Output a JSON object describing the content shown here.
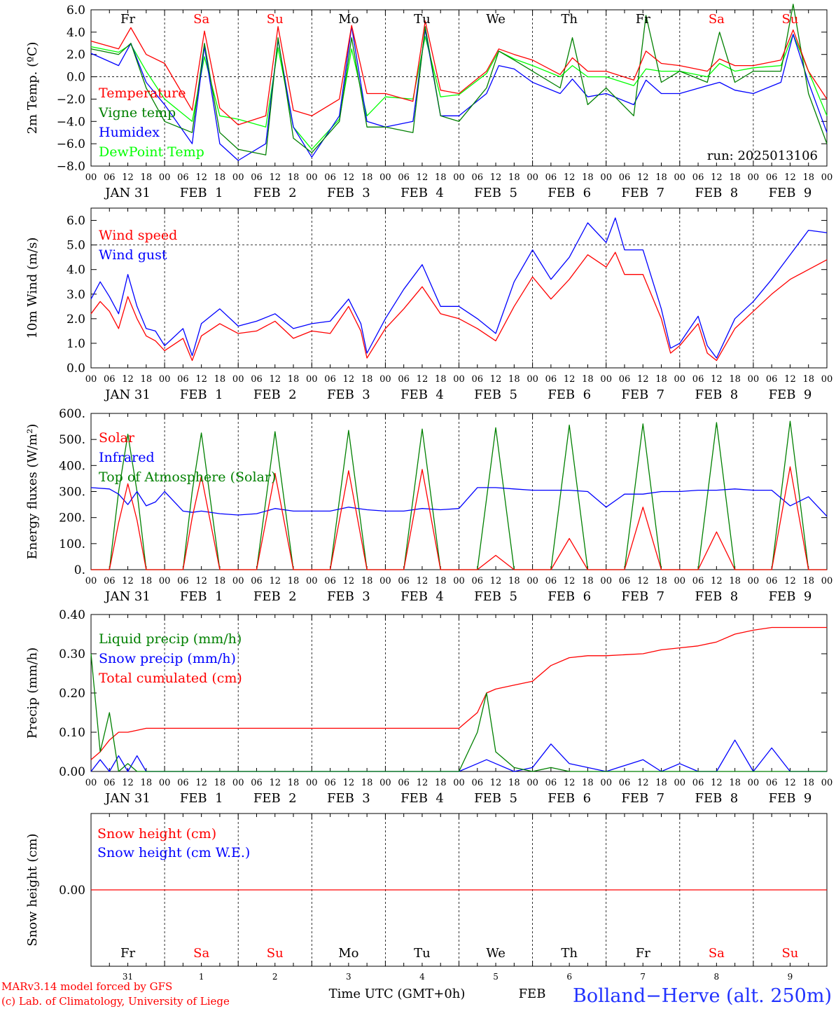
{
  "x_axis": {
    "hour_labels": [
      "00",
      "06",
      "12",
      "18"
    ],
    "day_labels": [
      "JAN 31",
      "FEB  1",
      "FEB  2",
      "FEB  3",
      "FEB  4",
      "FEB  5",
      "FEB  6",
      "FEB  7",
      "FEB  8",
      "FEB  9"
    ],
    "weekdays": [
      "Fr",
      "Sa",
      "Su",
      "Mo",
      "Tu",
      "We",
      "Th",
      "Fr",
      "Sa",
      "Su"
    ],
    "weekday_colors": [
      "#000000",
      "#ff0000",
      "#ff0000",
      "#000000",
      "#000000",
      "#000000",
      "#000000",
      "#000000",
      "#ff0000",
      "#ff0000"
    ],
    "day_numbers": [
      "31",
      "1",
      "2",
      "3",
      "4",
      "5",
      "6",
      "7",
      "8",
      "9"
    ],
    "month_label": "FEB",
    "title": "Time UTC (GMT+0h)"
  },
  "footer": {
    "credit_line1": "MARv3.14 model forced by GFS",
    "credit_line2": "(c) Lab. of Climatology, University of Liege",
    "station": "Bolland−Herve (alt. 250m)"
  },
  "colors": {
    "red": "#ff0000",
    "green": "#008000",
    "blue": "#0000ff",
    "lightgreen": "#00ff00"
  },
  "chart_data": [
    {
      "id": "temp",
      "type": "line",
      "ylabel": "2m Temp. (ºC)",
      "ylim": [
        -8,
        6
      ],
      "yticks": [
        6,
        4,
        2,
        0,
        -2,
        -4,
        -6,
        -8
      ],
      "ytick_labels": [
        "6.0",
        "4.0",
        "2.0",
        "0.0",
        "−2.0",
        "−4.0",
        "−6.0",
        "−8.0"
      ],
      "reference_line": 0,
      "run_label": "run: 2025013106",
      "x_hours": [
        0,
        9,
        13,
        18,
        24,
        33,
        37,
        42,
        48,
        57,
        61,
        66,
        72,
        81,
        85,
        90,
        96,
        105,
        109,
        114,
        120,
        129,
        133,
        138,
        144,
        153,
        157,
        162,
        168,
        177,
        181,
        186,
        192,
        201,
        205,
        210,
        216,
        225,
        229,
        234,
        240
      ],
      "series": [
        {
          "name": "Temperature",
          "color": "red",
          "values": [
            3.2,
            2.5,
            4.4,
            2.0,
            1.2,
            -3.0,
            4.1,
            -2.8,
            -4.3,
            -3.5,
            4.5,
            -3.0,
            -3.5,
            -2.0,
            4.6,
            -1.5,
            -1.5,
            -2.2,
            5.0,
            -1.2,
            -1.5,
            0.5,
            2.5,
            2.0,
            1.5,
            0.2,
            1.7,
            0.5,
            0.5,
            -0.3,
            2.3,
            1.2,
            1.0,
            0.5,
            1.6,
            1.0,
            1.0,
            1.5,
            4.2,
            0.5,
            -2.0
          ]
        },
        {
          "name": "Vigne temp",
          "color": "green",
          "values": [
            2.5,
            2.0,
            3.0,
            -1.0,
            -4.0,
            -5.0,
            3.0,
            -5.0,
            -6.5,
            -7.0,
            3.5,
            -5.5,
            -6.8,
            -4.0,
            3.5,
            -4.5,
            -4.5,
            -5.0,
            4.5,
            -3.5,
            -4.0,
            -1.0,
            2.3,
            1.5,
            0.5,
            -1.0,
            3.5,
            -2.5,
            -1.0,
            -3.5,
            5.5,
            -0.5,
            0.5,
            -0.5,
            4.0,
            -0.5,
            0.5,
            0.5,
            6.5,
            -1.5,
            -6.0
          ]
        },
        {
          "name": "Humidex",
          "color": "blue",
          "values": [
            2.1,
            1.0,
            3.0,
            -0.5,
            -2.5,
            -6.0,
            2.7,
            -6.0,
            -7.5,
            -6.0,
            3.3,
            -4.5,
            -7.2,
            -3.5,
            4.5,
            -4.0,
            -4.5,
            -4.0,
            4.2,
            -3.5,
            -3.5,
            -1.5,
            1.0,
            0.7,
            -0.5,
            -1.5,
            -0.2,
            -1.8,
            -1.5,
            -2.5,
            -0.3,
            -1.5,
            -1.5,
            -0.8,
            -0.5,
            -1.2,
            -1.5,
            -0.5,
            3.8,
            -0.5,
            -5.0
          ]
        },
        {
          "name": "DewPoint Temp",
          "color": "lightgreen",
          "values": [
            2.7,
            2.2,
            2.9,
            0.5,
            -2.0,
            -4.0,
            1.8,
            -3.5,
            -3.8,
            -4.5,
            2.6,
            -4.5,
            -6.5,
            -3.8,
            2.5,
            -3.5,
            -1.8,
            -2.0,
            3.6,
            -1.8,
            -1.6,
            0.3,
            2.3,
            1.6,
            1.0,
            0.0,
            1.0,
            0.0,
            0.0,
            -0.8,
            0.7,
            0.5,
            0.5,
            0.0,
            1.2,
            0.5,
            0.8,
            1.0,
            3.8,
            0.5,
            -3.5
          ]
        }
      ]
    },
    {
      "id": "wind",
      "type": "line",
      "ylabel": "10m Wind (m/s)",
      "ylim": [
        0,
        6.5
      ],
      "yticks": [
        0,
        1,
        2,
        3,
        4,
        5,
        6
      ],
      "ytick_labels": [
        "0.0",
        "1.0",
        "2.0",
        "3.0",
        "4.0",
        "5.0",
        "6.0"
      ],
      "reference_line": 5,
      "x_hours": [
        0,
        3,
        6,
        9,
        12,
        15,
        18,
        21,
        24,
        30,
        33,
        36,
        42,
        48,
        54,
        60,
        66,
        72,
        78,
        84,
        88,
        90,
        96,
        102,
        108,
        114,
        120,
        126,
        132,
        138,
        144,
        150,
        156,
        162,
        168,
        171,
        174,
        180,
        186,
        189,
        192,
        198,
        201,
        204,
        210,
        216,
        222,
        228,
        234,
        240
      ],
      "series": [
        {
          "name": "Wind speed",
          "color": "red",
          "values": [
            2.2,
            2.7,
            2.3,
            1.6,
            2.9,
            2.0,
            1.3,
            1.1,
            0.7,
            1.2,
            0.3,
            1.3,
            1.8,
            1.4,
            1.5,
            1.9,
            1.2,
            1.5,
            1.4,
            2.5,
            1.5,
            0.4,
            1.6,
            2.4,
            3.3,
            2.2,
            2.0,
            1.6,
            1.1,
            2.5,
            3.7,
            2.8,
            3.6,
            4.6,
            4.1,
            4.7,
            3.8,
            3.8,
            2.0,
            0.6,
            0.9,
            1.8,
            0.6,
            0.3,
            1.6,
            2.3,
            3.0,
            3.6,
            4.0,
            4.4
          ]
        },
        {
          "name": "Wind gust",
          "color": "blue",
          "values": [
            2.8,
            3.5,
            2.9,
            2.2,
            3.8,
            2.5,
            1.6,
            1.5,
            0.9,
            1.6,
            0.5,
            1.8,
            2.4,
            1.7,
            1.9,
            2.2,
            1.6,
            1.8,
            1.9,
            2.8,
            1.8,
            0.6,
            2.0,
            3.2,
            4.2,
            2.5,
            2.5,
            2.0,
            1.4,
            3.5,
            4.8,
            3.6,
            4.5,
            5.9,
            5.1,
            6.1,
            4.8,
            4.8,
            2.4,
            0.8,
            1.0,
            2.1,
            0.9,
            0.4,
            2.0,
            2.7,
            3.6,
            4.6,
            5.6,
            5.5
          ]
        }
      ]
    },
    {
      "id": "energy",
      "type": "line",
      "ylabel": "Energy fluxes (W/m²)",
      "ylim": [
        0,
        600
      ],
      "yticks": [
        0,
        100,
        200,
        300,
        400,
        500,
        600
      ],
      "ytick_labels": [
        "0.",
        "100.",
        "200.",
        "300.",
        "400.",
        "500.",
        "600."
      ],
      "x_hours": [
        0,
        6,
        9,
        12,
        15,
        18,
        21,
        24,
        30,
        33,
        36,
        42,
        48,
        54,
        60,
        66,
        72,
        78,
        84,
        90,
        96,
        102,
        108,
        114,
        120,
        126,
        132,
        138,
        144,
        150,
        156,
        162,
        168,
        174,
        180,
        186,
        192,
        198,
        204,
        210,
        216,
        222,
        228,
        234,
        240
      ],
      "series": [
        {
          "name": "Solar",
          "color": "red",
          "values": [
            0,
            0,
            180,
            330,
            190,
            0,
            0,
            0,
            0,
            200,
            360,
            0,
            0,
            0,
            370,
            0,
            0,
            0,
            380,
            0,
            0,
            0,
            385,
            0,
            0,
            0,
            55,
            0,
            0,
            0,
            120,
            0,
            0,
            0,
            240,
            0,
            0,
            0,
            145,
            0,
            0,
            0,
            395,
            0,
            0
          ]
        },
        {
          "name": "Infrared",
          "color": "blue",
          "values": [
            315,
            310,
            290,
            250,
            300,
            245,
            260,
            300,
            225,
            220,
            225,
            215,
            210,
            215,
            235,
            225,
            225,
            225,
            240,
            230,
            225,
            225,
            235,
            230,
            235,
            315,
            315,
            310,
            305,
            305,
            305,
            300,
            240,
            290,
            290,
            300,
            300,
            305,
            305,
            310,
            305,
            305,
            245,
            280,
            205
          ]
        },
        {
          "name": "Top of Atmosphere (Solar)",
          "color": "green",
          "values": [
            0,
            0,
            300,
            520,
            300,
            0,
            0,
            0,
            0,
            300,
            525,
            0,
            0,
            0,
            530,
            0,
            0,
            0,
            535,
            0,
            0,
            0,
            540,
            0,
            0,
            0,
            545,
            0,
            0,
            0,
            555,
            0,
            0,
            0,
            560,
            0,
            0,
            0,
            565,
            0,
            0,
            0,
            570,
            0,
            0
          ]
        }
      ]
    },
    {
      "id": "precip",
      "type": "line",
      "ylabel": "Precip (mm/h)",
      "ylim": [
        0,
        0.4
      ],
      "yticks": [
        0,
        0.1,
        0.2,
        0.3,
        0.4
      ],
      "ytick_labels": [
        "0.00",
        "0.10",
        "0.20",
        "0.30",
        "0.40"
      ],
      "x_hours": [
        0,
        3,
        6,
        9,
        12,
        15,
        18,
        24,
        36,
        48,
        72,
        96,
        114,
        120,
        126,
        129,
        132,
        138,
        144,
        150,
        156,
        162,
        168,
        180,
        186,
        192,
        198,
        204,
        210,
        216,
        222,
        228,
        234,
        240
      ],
      "series": [
        {
          "name": "Liquid precip (mm/h)",
          "color": "green",
          "values": [
            0.3,
            0.05,
            0.15,
            0.0,
            0.02,
            0.0,
            0.0,
            0.0,
            0.0,
            0.0,
            0.0,
            0.0,
            0.0,
            0.0,
            0.1,
            0.2,
            0.05,
            0.01,
            0.0,
            0.01,
            0.0,
            0.0,
            0.0,
            0.0,
            0.0,
            0.0,
            0.0,
            0.0,
            0.0,
            0.0,
            0.0,
            0.0,
            0.0,
            0.0
          ]
        },
        {
          "name": "Snow precip (mm/h)",
          "color": "blue",
          "values": [
            0.0,
            0.03,
            0.0,
            0.04,
            0.0,
            0.04,
            0.0,
            0.0,
            0.0,
            0.0,
            0.0,
            0.0,
            0.0,
            0.0,
            0.02,
            0.03,
            0.02,
            0.0,
            0.01,
            0.07,
            0.02,
            0.01,
            0.0,
            0.03,
            0.0,
            0.02,
            0.0,
            0.0,
            0.08,
            0.0,
            0.06,
            0.0,
            0.0,
            0.0
          ]
        },
        {
          "name": "Total cumulated (cm)",
          "color": "red",
          "values": [
            0.03,
            0.05,
            0.08,
            0.1,
            0.1,
            0.105,
            0.11,
            0.11,
            0.11,
            0.11,
            0.11,
            0.11,
            0.11,
            0.11,
            0.15,
            0.2,
            0.21,
            0.22,
            0.23,
            0.27,
            0.29,
            0.295,
            0.295,
            0.3,
            0.31,
            0.315,
            0.32,
            0.33,
            0.35,
            0.36,
            0.367,
            0.367,
            0.367,
            0.367
          ]
        }
      ]
    },
    {
      "id": "snow",
      "type": "line",
      "ylabel": "Snow height (cm)",
      "ylim": [
        -1,
        1
      ],
      "yticks": [
        0
      ],
      "ytick_labels": [
        "0.00"
      ],
      "x_hours": [
        0,
        240
      ],
      "series": [
        {
          "name": "Snow height (cm)",
          "color": "red",
          "values": [
            0,
            0
          ]
        },
        {
          "name": "Snow height (cm W.E.)",
          "color": "blue",
          "values": [
            0,
            0
          ]
        }
      ]
    }
  ]
}
